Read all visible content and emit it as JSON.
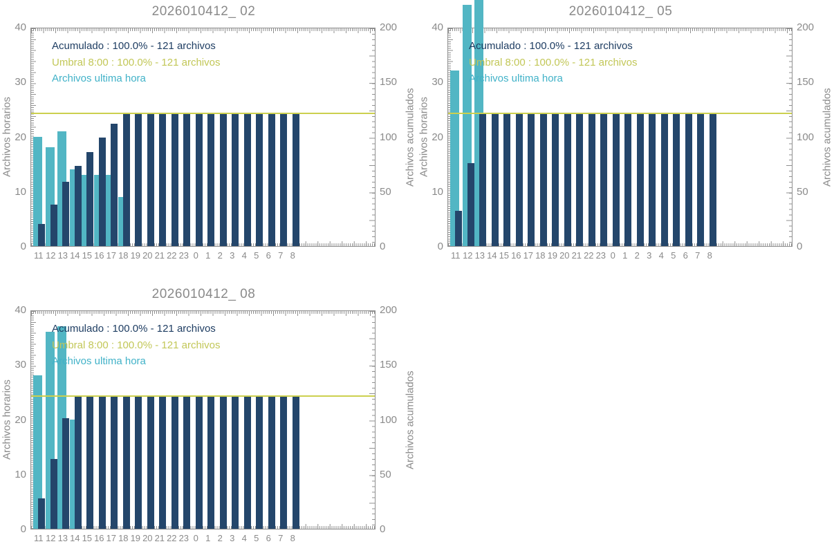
{
  "colors": {
    "bar_navy": "#24466b",
    "bar_teal": "#52b6c4",
    "threshold_line": "#ccd04e",
    "text_navy": "#1e3d62",
    "text_umbral": "#c2c757",
    "text_teal": "#41b2c8",
    "text_gray": "#8a8a8a",
    "axis_gray": "#8f8f8f",
    "tick_gray": "#8f8f8f",
    "background": "#ffffff"
  },
  "chart_data": [
    {
      "type": "bar",
      "title": "2026010412_ 02",
      "x_labels": [
        "11",
        "12",
        "13",
        "14",
        "15",
        "16",
        "17",
        "18",
        "19",
        "20",
        "21",
        "22",
        "23",
        "0",
        "1",
        "2",
        "3",
        "4",
        "5",
        "6",
        "7",
        "8"
      ],
      "series": [
        {
          "name": "Archivos ultima hora",
          "axis": "left",
          "values": [
            20,
            18,
            21,
            14,
            13,
            13,
            13,
            9,
            0,
            0,
            0,
            0,
            0,
            0,
            0,
            0,
            0,
            0,
            0,
            0,
            0,
            0
          ]
        },
        {
          "name": "Acumulado",
          "axis": "right",
          "values": [
            20,
            38,
            59,
            73,
            86,
            99,
            112,
            121,
            121,
            121,
            121,
            121,
            121,
            121,
            121,
            121,
            121,
            121,
            121,
            121,
            121,
            121
          ]
        }
      ],
      "threshold": {
        "value": 121,
        "axis": "right"
      },
      "left_axis": {
        "label": "Archivos horarios",
        "min": 0,
        "max": 40,
        "ticks": [
          "0",
          "10",
          "20",
          "30",
          "40"
        ]
      },
      "right_axis": {
        "label": "Archivos acumulados",
        "min": 0,
        "max": 200,
        "ticks": [
          "0",
          "50",
          "100",
          "150",
          "200"
        ]
      },
      "legend": {
        "acumulado": "Acumulado : 100.0% - 121 archivos",
        "umbral": "Umbral 8:00 : 100.0% - 121 archivos",
        "ultima": "Archivos ultima hora"
      }
    },
    {
      "type": "bar",
      "title": "2026010412_ 05",
      "x_labels": [
        "11",
        "12",
        "13",
        "14",
        "15",
        "16",
        "17",
        "18",
        "19",
        "20",
        "21",
        "22",
        "23",
        "0",
        "1",
        "2",
        "3",
        "4",
        "5",
        "6",
        "7",
        "8"
      ],
      "series": [
        {
          "name": "Archivos ultima hora",
          "axis": "left",
          "values": [
            32,
            44,
            45,
            0,
            0,
            0,
            0,
            0,
            0,
            0,
            0,
            0,
            0,
            0,
            0,
            0,
            0,
            0,
            0,
            0,
            0,
            0
          ]
        },
        {
          "name": "Acumulado",
          "axis": "right",
          "values": [
            32,
            76,
            121,
            121,
            121,
            121,
            121,
            121,
            121,
            121,
            121,
            121,
            121,
            121,
            121,
            121,
            121,
            121,
            121,
            121,
            121,
            121
          ]
        }
      ],
      "threshold": {
        "value": 121,
        "axis": "right"
      },
      "left_axis": {
        "label": "Archivos horarios",
        "min": 0,
        "max": 40,
        "ticks": [
          "0",
          "10",
          "20",
          "30",
          "40"
        ]
      },
      "right_axis": {
        "label": "Archivos acumulados",
        "min": 0,
        "max": 200,
        "ticks": [
          "0",
          "50",
          "100",
          "150",
          "200"
        ]
      },
      "legend": {
        "acumulado": "Acumulado : 100.0% - 121 archivos",
        "umbral": "Umbral 8:00 : 100.0% - 121 archivos",
        "ultima": "Archivos ultima hora"
      }
    },
    {
      "type": "bar",
      "title": "2026010412_ 08",
      "x_labels": [
        "11",
        "12",
        "13",
        "14",
        "15",
        "16",
        "17",
        "18",
        "19",
        "20",
        "21",
        "22",
        "23",
        "0",
        "1",
        "2",
        "3",
        "4",
        "5",
        "6",
        "7",
        "8"
      ],
      "series": [
        {
          "name": "Archivos ultima hora",
          "axis": "left",
          "values": [
            28,
            36,
            37,
            20,
            0,
            0,
            0,
            0,
            0,
            0,
            0,
            0,
            0,
            0,
            0,
            0,
            0,
            0,
            0,
            0,
            0,
            0
          ]
        },
        {
          "name": "Acumulado",
          "axis": "right",
          "values": [
            28,
            64,
            101,
            121,
            121,
            121,
            121,
            121,
            121,
            121,
            121,
            121,
            121,
            121,
            121,
            121,
            121,
            121,
            121,
            121,
            121,
            121
          ]
        }
      ],
      "threshold": {
        "value": 121,
        "axis": "right"
      },
      "left_axis": {
        "label": "Archivos horarios",
        "min": 0,
        "max": 40,
        "ticks": [
          "0",
          "10",
          "20",
          "30",
          "40"
        ]
      },
      "right_axis": {
        "label": "Archivos acumulados",
        "min": 0,
        "max": 200,
        "ticks": [
          "0",
          "50",
          "100",
          "150",
          "200"
        ]
      },
      "legend": {
        "acumulado": "Acumulado : 100.0% - 121 archivos",
        "umbral": "Umbral 8:00 : 100.0% - 121 archivos",
        "ultima": "Archivos ultima hora"
      }
    }
  ]
}
